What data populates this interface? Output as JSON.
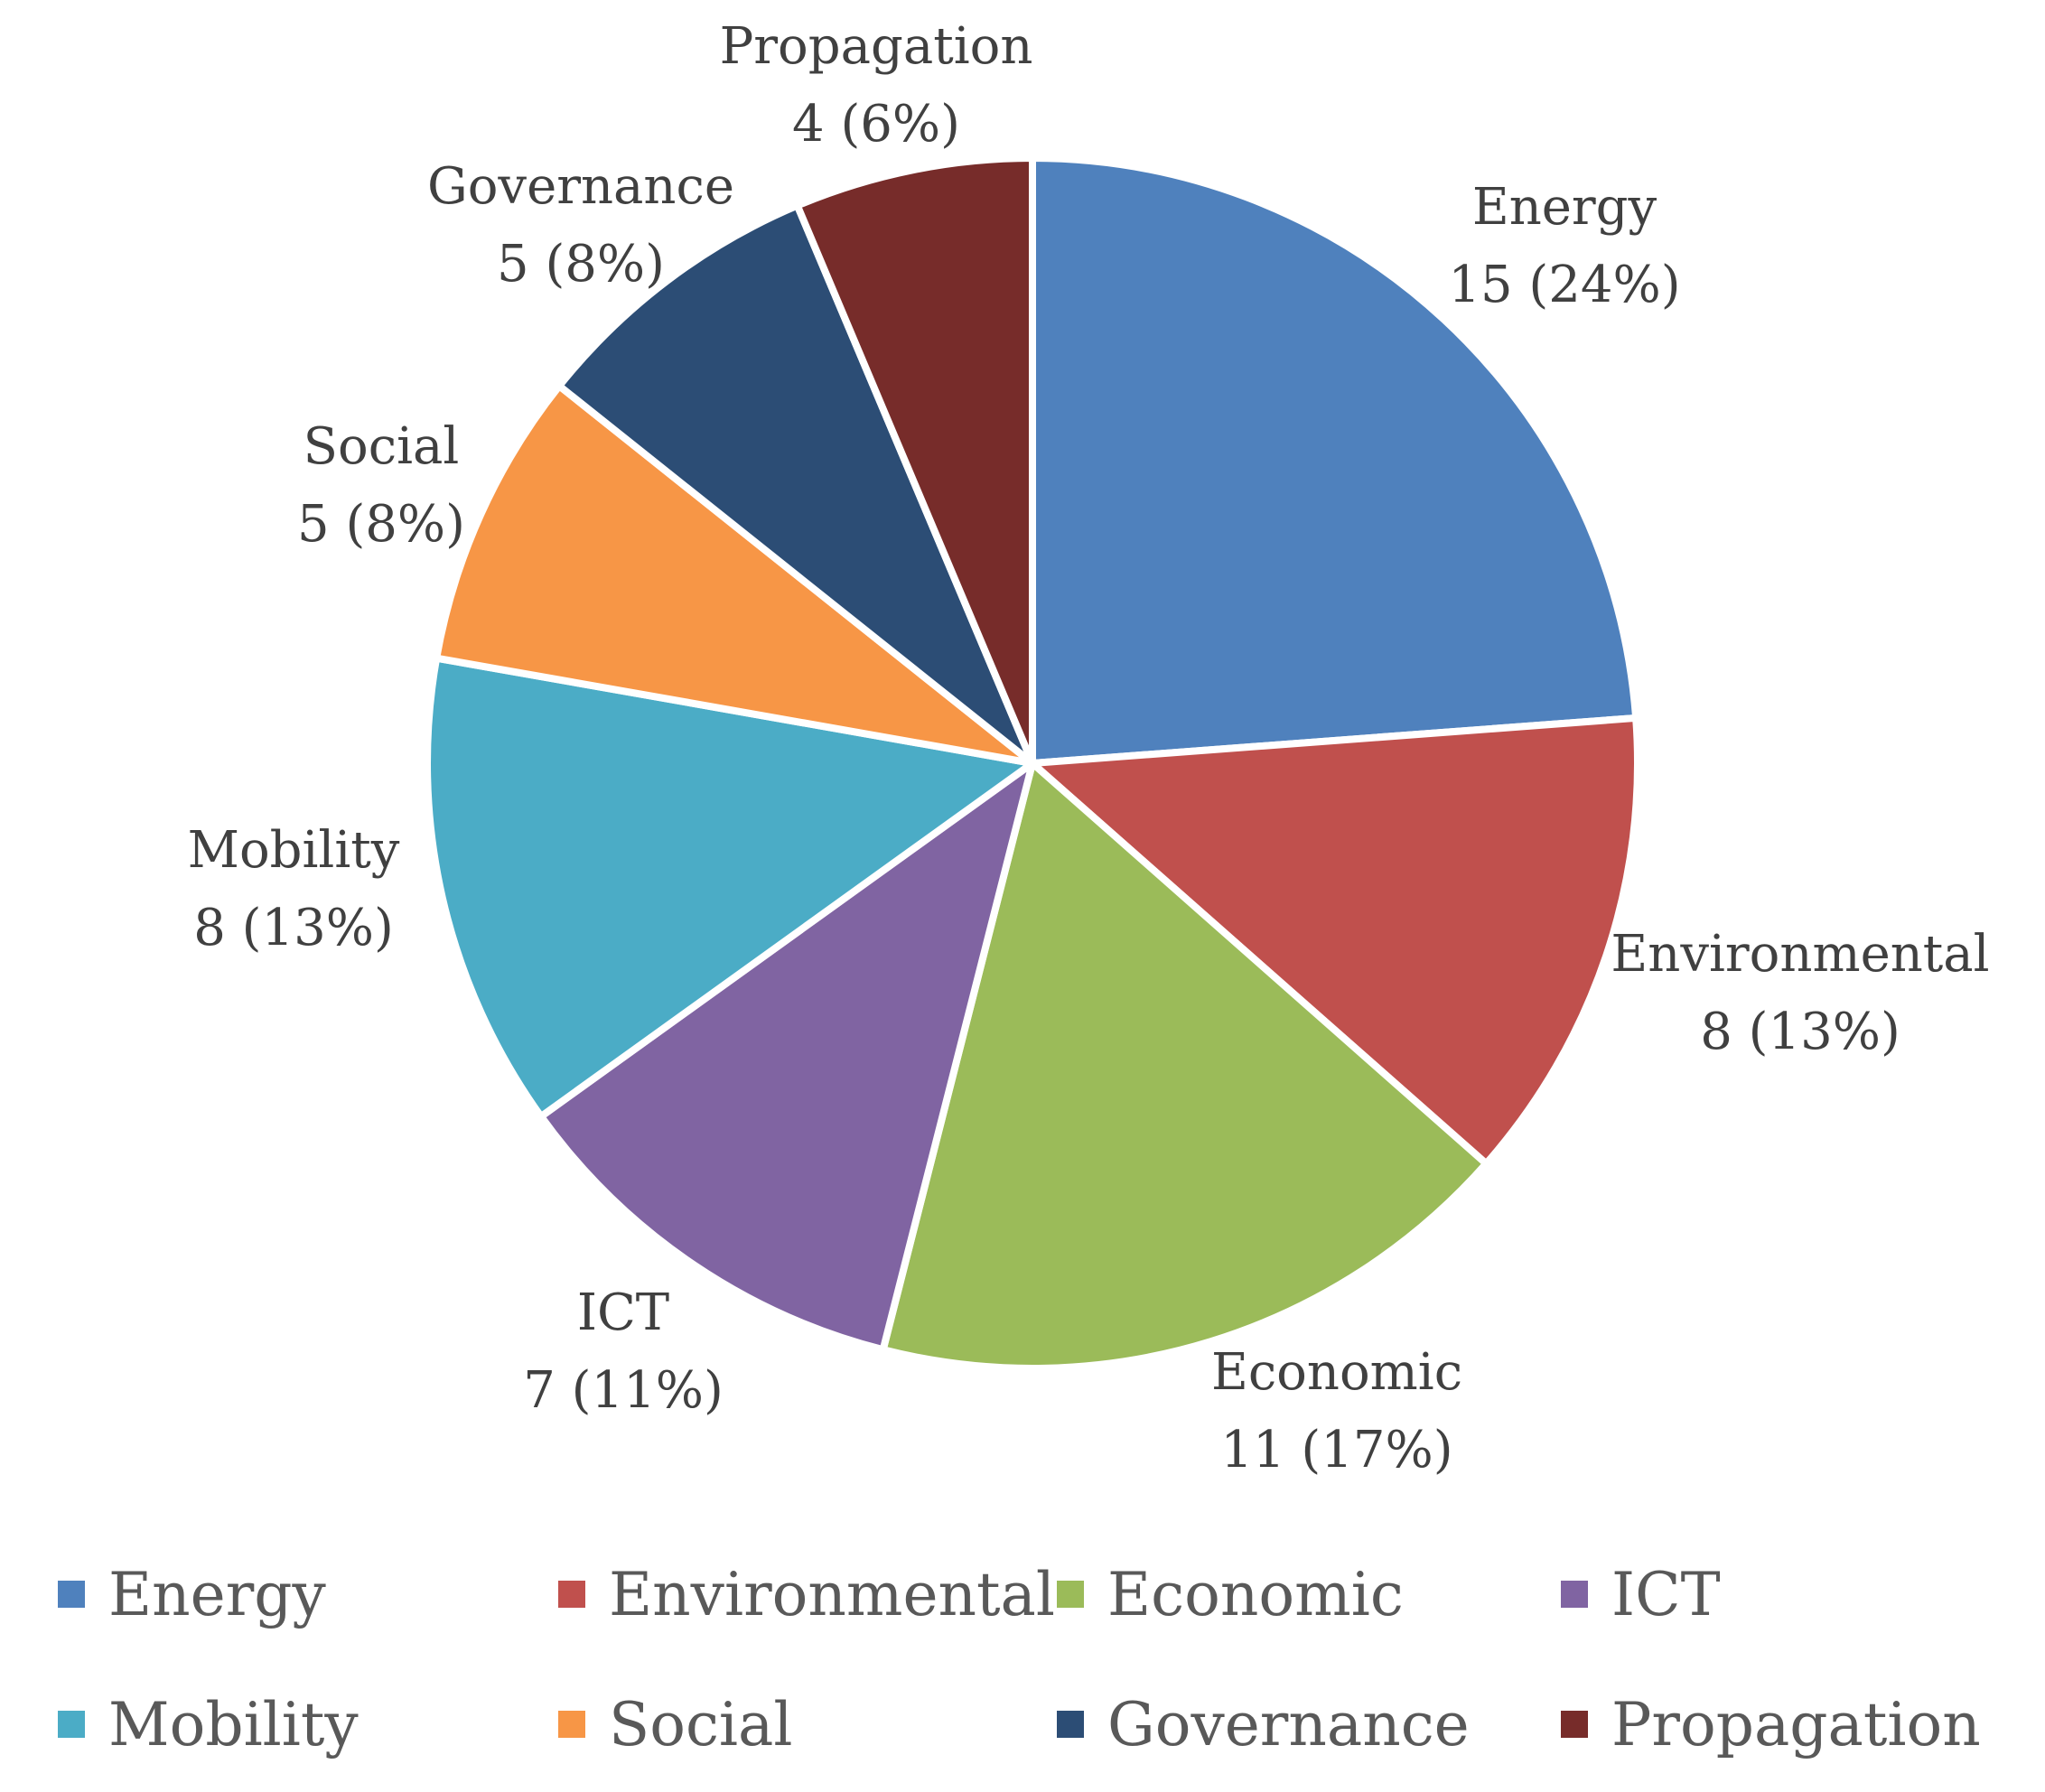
{
  "chart_data": {
    "type": "pie",
    "title": "",
    "start_angle_deg": 0,
    "direction": "clockwise",
    "slices": [
      {
        "name": "Energy",
        "value": 15,
        "percent": "24%",
        "label": "15 (24%)",
        "color": "#4F81BD"
      },
      {
        "name": "Environmental",
        "value": 8,
        "percent": "13%",
        "label": "8 (13%)",
        "color": "#C0504D"
      },
      {
        "name": "Economic",
        "value": 11,
        "percent": "17%",
        "label": "11 (17%)",
        "color": "#9BBB59"
      },
      {
        "name": "ICT",
        "value": 7,
        "percent": "11%",
        "label": "7 (11%)",
        "color": "#8064A2"
      },
      {
        "name": "Mobility",
        "value": 8,
        "percent": "13%",
        "label": "8 (13%)",
        "color": "#4BACC6"
      },
      {
        "name": "Social",
        "value": 5,
        "percent": "8%",
        "label": "5 (8%)",
        "color": "#F79646"
      },
      {
        "name": "Governance",
        "value": 5,
        "percent": "8%",
        "label": "5 (8%)",
        "color": "#2C4D75"
      },
      {
        "name": "Propagation",
        "value": 4,
        "percent": "6%",
        "label": "4 (6%)",
        "color": "#772C2A"
      }
    ],
    "legend_position": "bottom"
  }
}
